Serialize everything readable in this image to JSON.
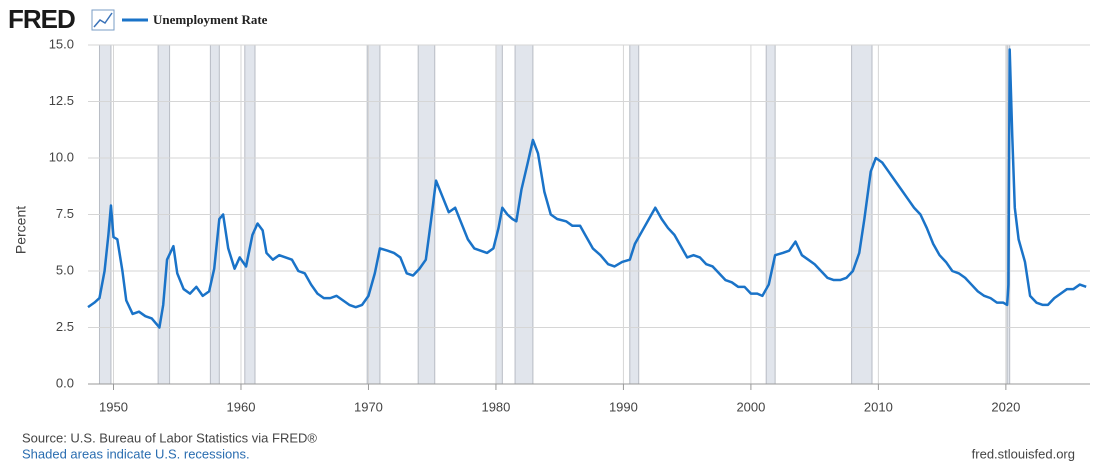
{
  "chart_data": {
    "type": "line",
    "logo": "FRED",
    "y_label": "Percent",
    "source": "Source: U.S. Bureau of Labor Statistics via FRED®",
    "note": "Shaded areas indicate U.S. recessions.",
    "url": "fred.stlouisfed.org",
    "x": [
      1948.0,
      1948.5,
      1948.9,
      1949.3,
      1949.6,
      1949.8,
      1950.0,
      1950.3,
      1950.7,
      1951.0,
      1951.5,
      1952.0,
      1952.5,
      1953.0,
      1953.3,
      1953.6,
      1953.9,
      1954.2,
      1954.7,
      1955.0,
      1955.5,
      1956.0,
      1956.5,
      1957.0,
      1957.5,
      1957.9,
      1958.3,
      1958.6,
      1959.0,
      1959.5,
      1959.9,
      1960.4,
      1960.9,
      1961.3,
      1961.7,
      1962.0,
      1962.5,
      1963.0,
      1963.5,
      1964.0,
      1964.5,
      1965.0,
      1965.5,
      1966.0,
      1966.5,
      1967.0,
      1967.5,
      1968.0,
      1968.5,
      1969.0,
      1969.5,
      1970.0,
      1970.5,
      1970.9,
      1971.5,
      1972.0,
      1972.5,
      1973.0,
      1973.5,
      1974.0,
      1974.5,
      1974.9,
      1975.3,
      1975.8,
      1976.3,
      1976.8,
      1977.3,
      1977.8,
      1978.3,
      1978.8,
      1979.3,
      1979.8,
      1980.2,
      1980.5,
      1980.9,
      1981.3,
      1981.6,
      1982.0,
      1982.5,
      1982.9,
      1983.3,
      1983.8,
      1984.3,
      1984.8,
      1985.5,
      1986.0,
      1986.6,
      1987.0,
      1987.6,
      1988.2,
      1988.8,
      1989.3,
      1989.9,
      1990.5,
      1990.9,
      1991.5,
      1992.0,
      1992.5,
      1993.0,
      1993.5,
      1994.0,
      1994.5,
      1995.0,
      1995.5,
      1996.0,
      1996.5,
      1997.0,
      1997.5,
      1998.0,
      1998.5,
      1999.0,
      1999.5,
      2000.0,
      2000.5,
      2000.9,
      2001.4,
      2001.9,
      2002.5,
      2003.0,
      2003.5,
      2004.0,
      2004.5,
      2005.0,
      2005.5,
      2006.0,
      2006.5,
      2007.0,
      2007.5,
      2008.0,
      2008.5,
      2008.9,
      2009.4,
      2009.8,
      2010.3,
      2010.8,
      2011.3,
      2011.8,
      2012.3,
      2012.8,
      2013.3,
      2013.8,
      2014.3,
      2014.8,
      2015.3,
      2015.8,
      2016.3,
      2016.8,
      2017.3,
      2017.8,
      2018.3,
      2018.8,
      2019.3,
      2019.8,
      2020.1,
      2020.2,
      2020.3,
      2020.5,
      2020.7,
      2021.0,
      2021.5,
      2021.9,
      2022.4,
      2022.9,
      2023.3,
      2023.8,
      2024.3,
      2024.8,
      2025.3,
      2025.8,
      2026.3
    ],
    "series": [
      {
        "name": "Unemployment Rate",
        "color": "#1a73c8",
        "values": [
          3.4,
          3.6,
          3.8,
          5.0,
          6.6,
          7.9,
          6.5,
          6.4,
          5.0,
          3.7,
          3.1,
          3.2,
          3.0,
          2.9,
          2.7,
          2.5,
          3.5,
          5.5,
          6.1,
          4.9,
          4.2,
          4.0,
          4.3,
          3.9,
          4.1,
          5.1,
          7.3,
          7.5,
          6.0,
          5.1,
          5.6,
          5.2,
          6.6,
          7.1,
          6.8,
          5.8,
          5.5,
          5.7,
          5.6,
          5.5,
          5.0,
          4.9,
          4.4,
          4.0,
          3.8,
          3.8,
          3.9,
          3.7,
          3.5,
          3.4,
          3.5,
          3.9,
          4.9,
          6.0,
          5.9,
          5.8,
          5.6,
          4.9,
          4.8,
          5.1,
          5.5,
          7.2,
          9.0,
          8.3,
          7.6,
          7.8,
          7.1,
          6.4,
          6.0,
          5.9,
          5.8,
          6.0,
          6.9,
          7.8,
          7.5,
          7.3,
          7.2,
          8.6,
          9.8,
          10.8,
          10.2,
          8.5,
          7.5,
          7.3,
          7.2,
          7.0,
          7.0,
          6.6,
          6.0,
          5.7,
          5.3,
          5.2,
          5.4,
          5.5,
          6.2,
          6.8,
          7.3,
          7.8,
          7.3,
          6.9,
          6.6,
          6.1,
          5.6,
          5.7,
          5.6,
          5.3,
          5.2,
          4.9,
          4.6,
          4.5,
          4.3,
          4.3,
          4.0,
          4.0,
          3.9,
          4.4,
          5.7,
          5.8,
          5.9,
          6.3,
          5.7,
          5.5,
          5.3,
          5.0,
          4.7,
          4.6,
          4.6,
          4.7,
          5.0,
          5.8,
          7.3,
          9.4,
          10.0,
          9.8,
          9.4,
          9.0,
          8.6,
          8.2,
          7.8,
          7.5,
          6.9,
          6.2,
          5.7,
          5.4,
          5.0,
          4.9,
          4.7,
          4.4,
          4.1,
          3.9,
          3.8,
          3.6,
          3.6,
          3.5,
          4.4,
          14.8,
          11.0,
          7.8,
          6.4,
          5.4,
          3.9,
          3.6,
          3.5,
          3.5,
          3.8,
          4.0,
          4.2,
          4.2,
          4.4,
          4.3
        ]
      }
    ],
    "recessions": [
      [
        1948.9,
        1949.8
      ],
      [
        1953.5,
        1954.4
      ],
      [
        1957.6,
        1958.3
      ],
      [
        1960.3,
        1961.1
      ],
      [
        1969.9,
        1970.9
      ],
      [
        1973.9,
        1975.2
      ],
      [
        1980.0,
        1980.5
      ],
      [
        1981.5,
        1982.9
      ],
      [
        1990.5,
        1991.2
      ],
      [
        2001.2,
        2001.9
      ],
      [
        2007.9,
        2009.5
      ],
      [
        2020.1,
        2020.3
      ]
    ],
    "recession_color": "#e1e5ec",
    "xlim": [
      1948.0,
      2026.6
    ],
    "xticks": [
      1950,
      1960,
      1970,
      1980,
      1990,
      2000,
      2010,
      2020
    ],
    "ylim": [
      0,
      15
    ],
    "yticks": [
      {
        "value": 0,
        "label": "0.0"
      },
      {
        "value": 2.5,
        "label": "2.5"
      },
      {
        "value": 5,
        "label": "5.0"
      },
      {
        "value": 7.5,
        "label": "7.5"
      },
      {
        "value": 10,
        "label": "10.0"
      },
      {
        "value": 12.5,
        "label": "12.5"
      },
      {
        "value": 15,
        "label": "15.0"
      }
    ],
    "grid": true
  }
}
